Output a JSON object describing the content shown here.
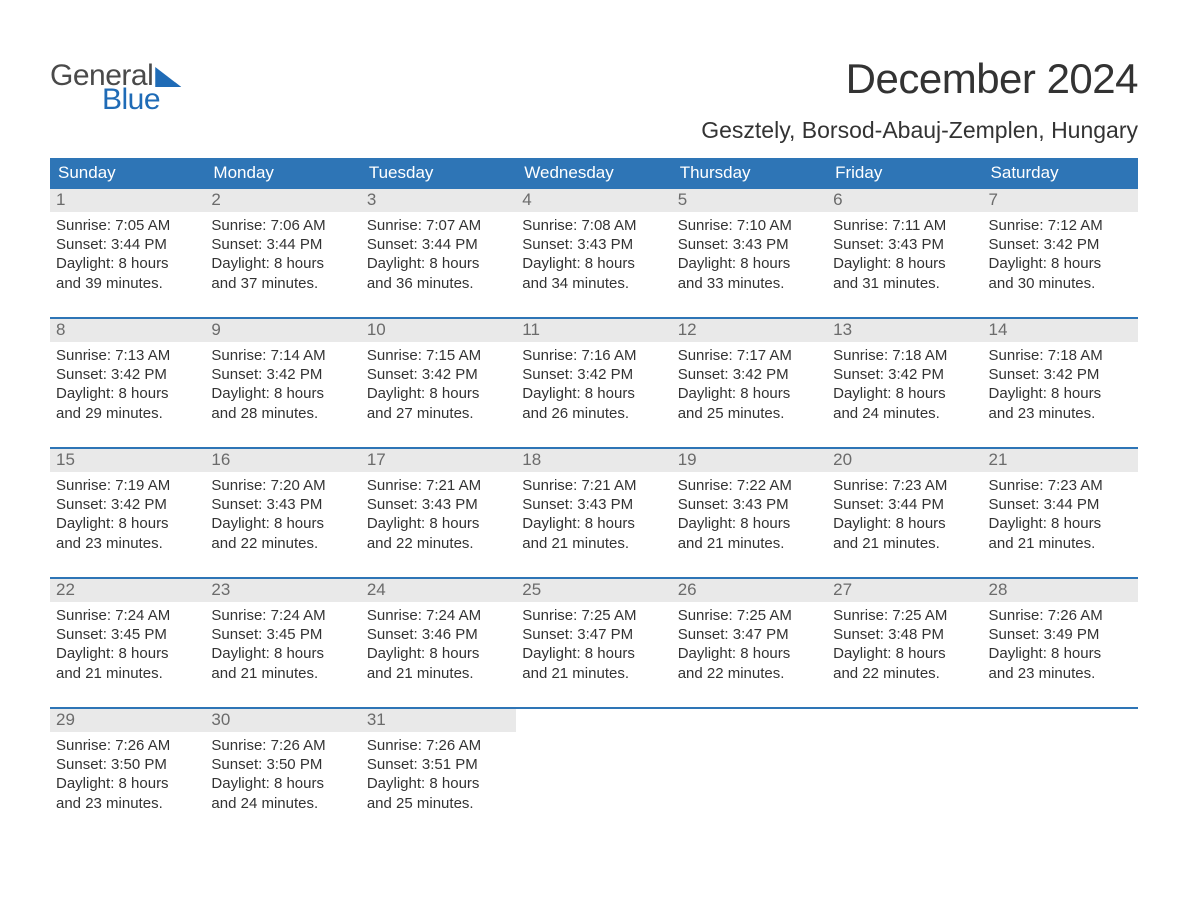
{
  "brand": {
    "word1": "General",
    "word2": "Blue"
  },
  "title": "December 2024",
  "location": "Gesztely, Borsod-Abauj-Zemplen, Hungary",
  "colors": {
    "header_bg": "#2e75b6",
    "header_text": "#ffffff",
    "daynum_bg": "#e9e9e9",
    "daynum_text": "#6b6b6b",
    "body_text": "#333333",
    "rule": "#2e75b6",
    "logo_blue": "#1f6bb6",
    "logo_gray": "#4a4a4a",
    "page_bg": "#ffffff"
  },
  "typography": {
    "title_fontsize": 42,
    "location_fontsize": 23,
    "weekday_fontsize": 17,
    "daynum_fontsize": 17,
    "body_fontsize": 15
  },
  "weekdays": [
    "Sunday",
    "Monday",
    "Tuesday",
    "Wednesday",
    "Thursday",
    "Friday",
    "Saturday"
  ],
  "weeks": [
    [
      {
        "n": "1",
        "sunrise": "Sunrise: 7:05 AM",
        "sunset": "Sunset: 3:44 PM",
        "d1": "Daylight: 8 hours",
        "d2": "and 39 minutes."
      },
      {
        "n": "2",
        "sunrise": "Sunrise: 7:06 AM",
        "sunset": "Sunset: 3:44 PM",
        "d1": "Daylight: 8 hours",
        "d2": "and 37 minutes."
      },
      {
        "n": "3",
        "sunrise": "Sunrise: 7:07 AM",
        "sunset": "Sunset: 3:44 PM",
        "d1": "Daylight: 8 hours",
        "d2": "and 36 minutes."
      },
      {
        "n": "4",
        "sunrise": "Sunrise: 7:08 AM",
        "sunset": "Sunset: 3:43 PM",
        "d1": "Daylight: 8 hours",
        "d2": "and 34 minutes."
      },
      {
        "n": "5",
        "sunrise": "Sunrise: 7:10 AM",
        "sunset": "Sunset: 3:43 PM",
        "d1": "Daylight: 8 hours",
        "d2": "and 33 minutes."
      },
      {
        "n": "6",
        "sunrise": "Sunrise: 7:11 AM",
        "sunset": "Sunset: 3:43 PM",
        "d1": "Daylight: 8 hours",
        "d2": "and 31 minutes."
      },
      {
        "n": "7",
        "sunrise": "Sunrise: 7:12 AM",
        "sunset": "Sunset: 3:42 PM",
        "d1": "Daylight: 8 hours",
        "d2": "and 30 minutes."
      }
    ],
    [
      {
        "n": "8",
        "sunrise": "Sunrise: 7:13 AM",
        "sunset": "Sunset: 3:42 PM",
        "d1": "Daylight: 8 hours",
        "d2": "and 29 minutes."
      },
      {
        "n": "9",
        "sunrise": "Sunrise: 7:14 AM",
        "sunset": "Sunset: 3:42 PM",
        "d1": "Daylight: 8 hours",
        "d2": "and 28 minutes."
      },
      {
        "n": "10",
        "sunrise": "Sunrise: 7:15 AM",
        "sunset": "Sunset: 3:42 PM",
        "d1": "Daylight: 8 hours",
        "d2": "and 27 minutes."
      },
      {
        "n": "11",
        "sunrise": "Sunrise: 7:16 AM",
        "sunset": "Sunset: 3:42 PM",
        "d1": "Daylight: 8 hours",
        "d2": "and 26 minutes."
      },
      {
        "n": "12",
        "sunrise": "Sunrise: 7:17 AM",
        "sunset": "Sunset: 3:42 PM",
        "d1": "Daylight: 8 hours",
        "d2": "and 25 minutes."
      },
      {
        "n": "13",
        "sunrise": "Sunrise: 7:18 AM",
        "sunset": "Sunset: 3:42 PM",
        "d1": "Daylight: 8 hours",
        "d2": "and 24 minutes."
      },
      {
        "n": "14",
        "sunrise": "Sunrise: 7:18 AM",
        "sunset": "Sunset: 3:42 PM",
        "d1": "Daylight: 8 hours",
        "d2": "and 23 minutes."
      }
    ],
    [
      {
        "n": "15",
        "sunrise": "Sunrise: 7:19 AM",
        "sunset": "Sunset: 3:42 PM",
        "d1": "Daylight: 8 hours",
        "d2": "and 23 minutes."
      },
      {
        "n": "16",
        "sunrise": "Sunrise: 7:20 AM",
        "sunset": "Sunset: 3:43 PM",
        "d1": "Daylight: 8 hours",
        "d2": "and 22 minutes."
      },
      {
        "n": "17",
        "sunrise": "Sunrise: 7:21 AM",
        "sunset": "Sunset: 3:43 PM",
        "d1": "Daylight: 8 hours",
        "d2": "and 22 minutes."
      },
      {
        "n": "18",
        "sunrise": "Sunrise: 7:21 AM",
        "sunset": "Sunset: 3:43 PM",
        "d1": "Daylight: 8 hours",
        "d2": "and 21 minutes."
      },
      {
        "n": "19",
        "sunrise": "Sunrise: 7:22 AM",
        "sunset": "Sunset: 3:43 PM",
        "d1": "Daylight: 8 hours",
        "d2": "and 21 minutes."
      },
      {
        "n": "20",
        "sunrise": "Sunrise: 7:23 AM",
        "sunset": "Sunset: 3:44 PM",
        "d1": "Daylight: 8 hours",
        "d2": "and 21 minutes."
      },
      {
        "n": "21",
        "sunrise": "Sunrise: 7:23 AM",
        "sunset": "Sunset: 3:44 PM",
        "d1": "Daylight: 8 hours",
        "d2": "and 21 minutes."
      }
    ],
    [
      {
        "n": "22",
        "sunrise": "Sunrise: 7:24 AM",
        "sunset": "Sunset: 3:45 PM",
        "d1": "Daylight: 8 hours",
        "d2": "and 21 minutes."
      },
      {
        "n": "23",
        "sunrise": "Sunrise: 7:24 AM",
        "sunset": "Sunset: 3:45 PM",
        "d1": "Daylight: 8 hours",
        "d2": "and 21 minutes."
      },
      {
        "n": "24",
        "sunrise": "Sunrise: 7:24 AM",
        "sunset": "Sunset: 3:46 PM",
        "d1": "Daylight: 8 hours",
        "d2": "and 21 minutes."
      },
      {
        "n": "25",
        "sunrise": "Sunrise: 7:25 AM",
        "sunset": "Sunset: 3:47 PM",
        "d1": "Daylight: 8 hours",
        "d2": "and 21 minutes."
      },
      {
        "n": "26",
        "sunrise": "Sunrise: 7:25 AM",
        "sunset": "Sunset: 3:47 PM",
        "d1": "Daylight: 8 hours",
        "d2": "and 22 minutes."
      },
      {
        "n": "27",
        "sunrise": "Sunrise: 7:25 AM",
        "sunset": "Sunset: 3:48 PM",
        "d1": "Daylight: 8 hours",
        "d2": "and 22 minutes."
      },
      {
        "n": "28",
        "sunrise": "Sunrise: 7:26 AM",
        "sunset": "Sunset: 3:49 PM",
        "d1": "Daylight: 8 hours",
        "d2": "and 23 minutes."
      }
    ],
    [
      {
        "n": "29",
        "sunrise": "Sunrise: 7:26 AM",
        "sunset": "Sunset: 3:50 PM",
        "d1": "Daylight: 8 hours",
        "d2": "and 23 minutes."
      },
      {
        "n": "30",
        "sunrise": "Sunrise: 7:26 AM",
        "sunset": "Sunset: 3:50 PM",
        "d1": "Daylight: 8 hours",
        "d2": "and 24 minutes."
      },
      {
        "n": "31",
        "sunrise": "Sunrise: 7:26 AM",
        "sunset": "Sunset: 3:51 PM",
        "d1": "Daylight: 8 hours",
        "d2": "and 25 minutes."
      },
      {
        "empty": true
      },
      {
        "empty": true
      },
      {
        "empty": true
      },
      {
        "empty": true
      }
    ]
  ]
}
